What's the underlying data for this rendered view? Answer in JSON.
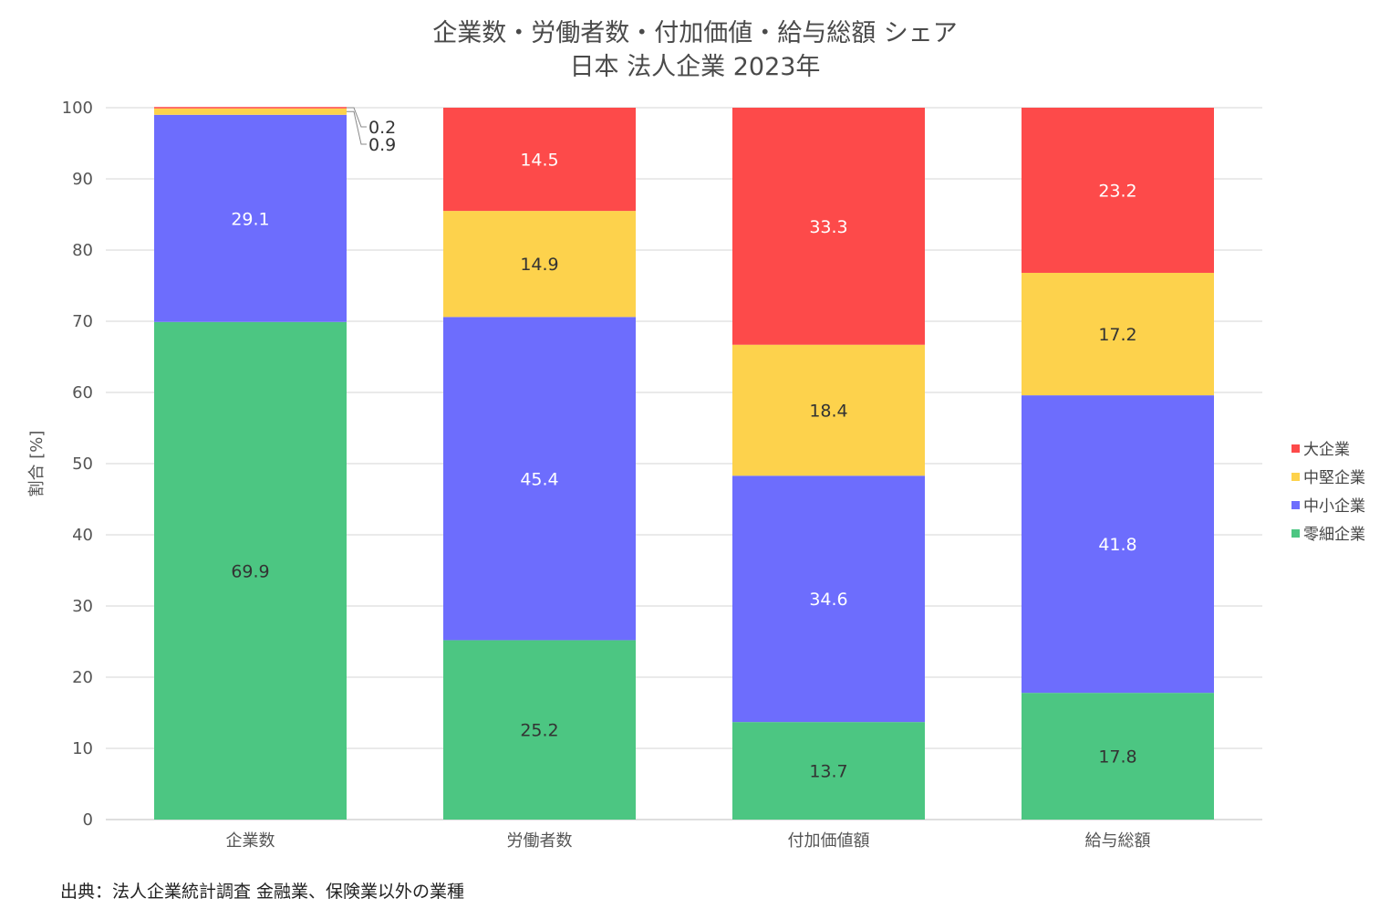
{
  "chart_data": {
    "type": "bar",
    "stacked": true,
    "title": "企業数・労働者数・付加価値・給与総額 シェア",
    "subtitle": "日本 法人企業 2023年",
    "ylabel": "割合 [%]",
    "ylim": [
      0,
      100
    ],
    "yticks": [
      0,
      10,
      20,
      30,
      40,
      50,
      60,
      70,
      80,
      90,
      100
    ],
    "grid": true,
    "legend_position": "right",
    "categories": [
      "企業数",
      "労働者数",
      "付加価値額",
      "給与総額"
    ],
    "series": [
      {
        "name": "零細企業",
        "color": "#4cc682",
        "values": [
          69.9,
          25.2,
          13.7,
          17.8
        ],
        "labels": [
          "69.9",
          "25.2",
          "13.7",
          "17.8"
        ],
        "label_color": "#333333"
      },
      {
        "name": "中小企業",
        "color": "#6d6dfd",
        "values": [
          29.1,
          45.4,
          34.6,
          41.8
        ],
        "labels": [
          "29.1",
          "45.4",
          "34.6",
          "41.8"
        ],
        "label_color": "#ffffff"
      },
      {
        "name": "中堅企業",
        "color": "#fdd24c",
        "values": [
          0.9,
          14.9,
          18.4,
          17.2
        ],
        "labels": [
          "0.9",
          "14.9",
          "18.4",
          "17.2"
        ],
        "label_color": "#333333"
      },
      {
        "name": "大企業",
        "color": "#fd4a4a",
        "values": [
          0.2,
          14.5,
          33.3,
          23.2
        ],
        "labels": [
          "0.2",
          "14.5",
          "33.3",
          "23.2"
        ],
        "label_color": "#ffffff"
      }
    ],
    "legend_order": [
      "大企業",
      "中堅企業",
      "中小企業",
      "零細企業"
    ]
  },
  "source_note": "出典：法人企業統計調査 金融業、保険業以外の業種"
}
